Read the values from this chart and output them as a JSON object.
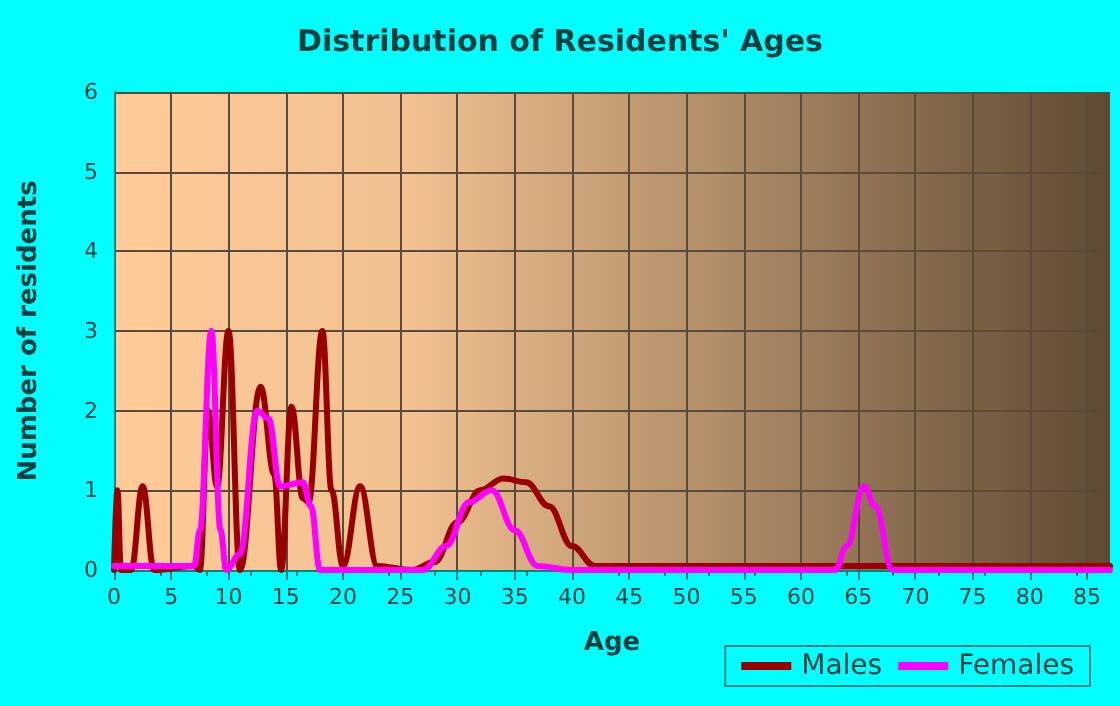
{
  "chart_data": {
    "type": "line",
    "title": "Distribution of Residents' Ages",
    "xlabel": "Age",
    "ylabel": "Number of residents",
    "xlim": [
      0,
      87
    ],
    "xticks": [
      0,
      5,
      10,
      15,
      20,
      25,
      30,
      35,
      40,
      45,
      50,
      55,
      60,
      65,
      70,
      75,
      80,
      85
    ],
    "ylim": [
      0,
      6
    ],
    "yticks": [
      0,
      1,
      2,
      3,
      4,
      5,
      6
    ],
    "grid": true,
    "legend": "bottom right",
    "marker": "none",
    "line_style": "solid",
    "series": [
      {
        "name": "Males",
        "color": "#990000",
        "x": [
          0,
          0.3,
          0.6,
          1.5,
          2.5,
          3.5,
          7,
          7.5,
          8.2,
          9,
          10,
          11,
          12.8,
          14,
          14.6,
          15.5,
          16.5,
          17,
          18.2,
          19,
          20,
          21.5,
          23,
          26,
          28,
          30,
          32,
          34,
          36,
          38,
          40,
          42,
          45,
          87
        ],
        "values": [
          0,
          1,
          0,
          0,
          1.05,
          0,
          0.05,
          0,
          2,
          1.05,
          3,
          0,
          2.3,
          1.2,
          0,
          2.05,
          0.9,
          0.85,
          3,
          1,
          0.05,
          1.05,
          0.05,
          0,
          0.1,
          0.6,
          1,
          1.15,
          1.1,
          0.8,
          0.3,
          0.05,
          0.05,
          0.05
        ]
      },
      {
        "name": "Females",
        "color": "#ff00ff",
        "x": [
          0,
          7,
          7.5,
          8.5,
          9.3,
          9.8,
          11,
          12.5,
          13.5,
          14.5,
          16.5,
          17.2,
          18,
          23,
          27,
          29,
          31,
          33,
          35,
          37,
          40,
          63,
          64,
          65.5,
          66.5,
          68,
          87
        ],
        "values": [
          0.05,
          0.05,
          0.5,
          3,
          0.5,
          0,
          0.2,
          2,
          1.9,
          1.05,
          1.1,
          0.8,
          0,
          0,
          0,
          0.3,
          0.85,
          1,
          0.5,
          0.05,
          0,
          0,
          0.3,
          1.05,
          0.8,
          0,
          0
        ]
      }
    ]
  }
}
